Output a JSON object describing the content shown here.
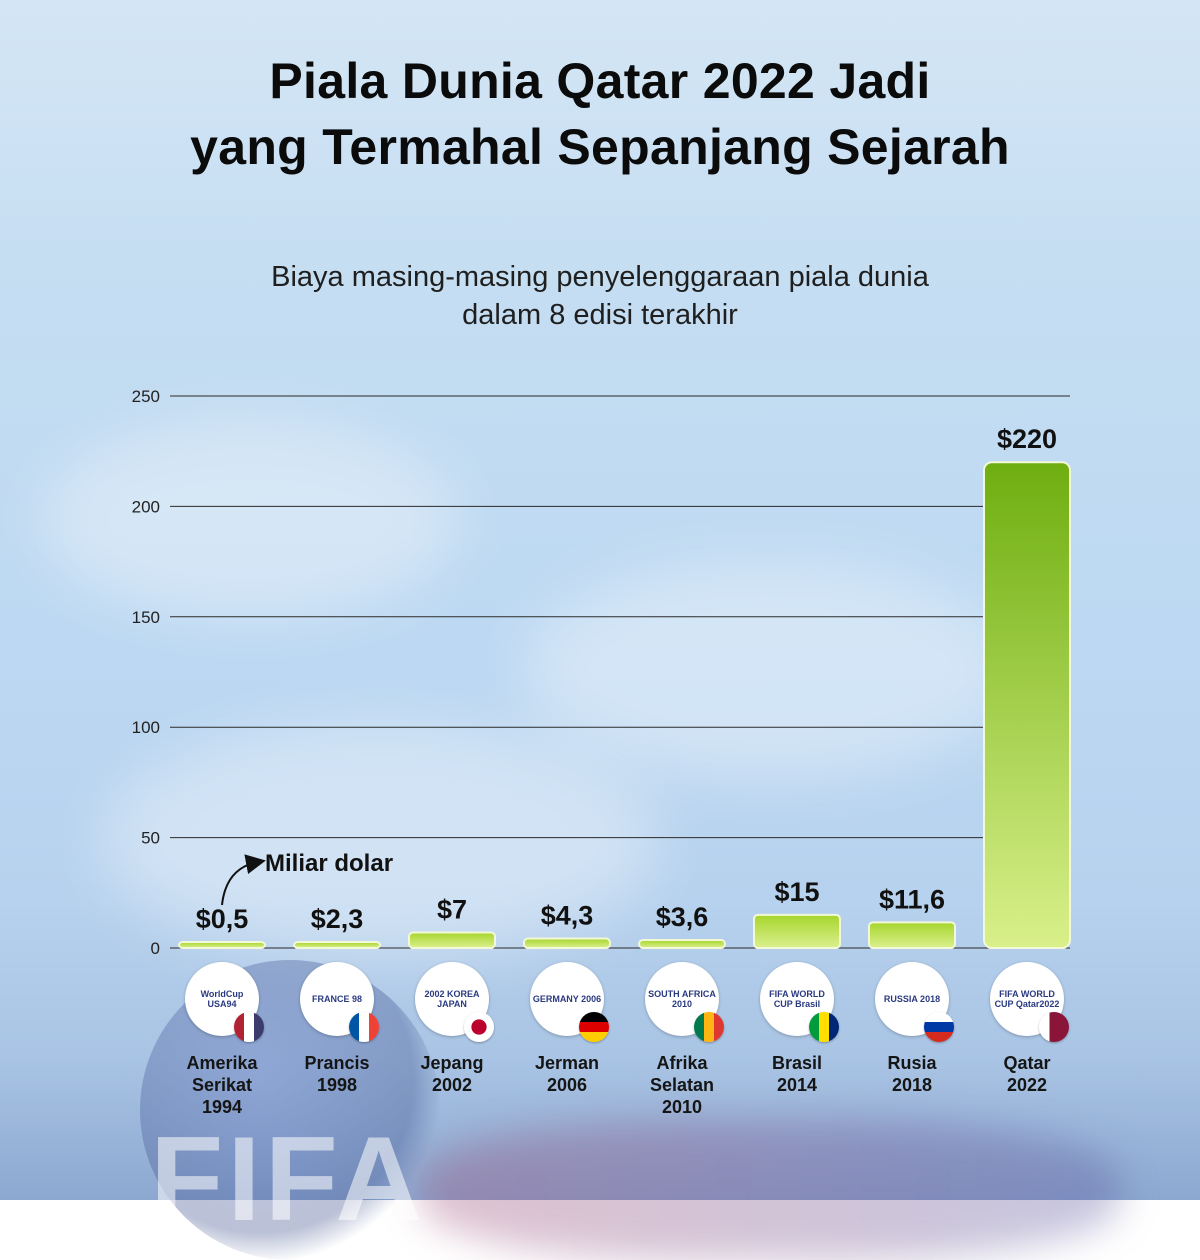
{
  "title_line1": "Piala Dunia Qatar 2022 Jadi",
  "title_line2": "yang Termahal Sepanjang Sejarah",
  "subtitle_line1": "Biaya masing-masing penyelenggaraan piala dunia",
  "subtitle_line2": "dalam 8 edisi terakhir",
  "unit_annotation": "Miliar dolar",
  "colors": {
    "bar_top": "#74b414",
    "bar_bottom": "#d6ef7e",
    "grid": "#222222",
    "text": "#111111"
  },
  "chart_data": {
    "type": "bar",
    "title": "Piala Dunia Qatar 2022 Jadi yang Termahal Sepanjang Sejarah",
    "subtitle": "Biaya masing-masing penyelenggaraan piala dunia dalam 8 edisi terakhir",
    "ylabel": "",
    "xlabel": "",
    "ylim": [
      0,
      250
    ],
    "yticks": [
      0,
      50,
      100,
      150,
      200,
      250
    ],
    "grid": true,
    "annotation": "Miliar dolar",
    "categories": [
      [
        "Amerika",
        "Serikat",
        "1994"
      ],
      [
        "Prancis",
        "1998"
      ],
      [
        "Jepang",
        "2002"
      ],
      [
        "Jerman",
        "2006"
      ],
      [
        "Afrika",
        "Selatan",
        "2010"
      ],
      [
        "Brasil",
        "2014"
      ],
      [
        "Rusia",
        "2018"
      ],
      [
        "Qatar",
        "2022"
      ]
    ],
    "values": [
      0.5,
      2.3,
      7,
      4.3,
      3.6,
      15,
      11.6,
      220
    ],
    "value_labels": [
      "$0,5",
      "$2,3",
      "$7",
      "$4,3",
      "$3,6",
      "$15",
      "$11,6",
      "$220"
    ],
    "logos": [
      {
        "text": "WorldCup USA94",
        "flag": "usa-flag-icon"
      },
      {
        "text": "FRANCE 98",
        "flag": "france-flag-icon"
      },
      {
        "text": "2002 KOREA JAPAN",
        "flag": "japan-flag-icon"
      },
      {
        "text": "GERMANY 2006",
        "flag": "germany-flag-icon"
      },
      {
        "text": "SOUTH AFRICA 2010",
        "flag": "south-africa-flag-icon"
      },
      {
        "text": "FIFA WORLD CUP Brasil",
        "flag": "brazil-flag-icon"
      },
      {
        "text": "RUSSIA 2018",
        "flag": "russia-flag-icon"
      },
      {
        "text": "FIFA WORLD CUP Qatar2022",
        "flag": "qatar-flag-icon"
      }
    ]
  }
}
